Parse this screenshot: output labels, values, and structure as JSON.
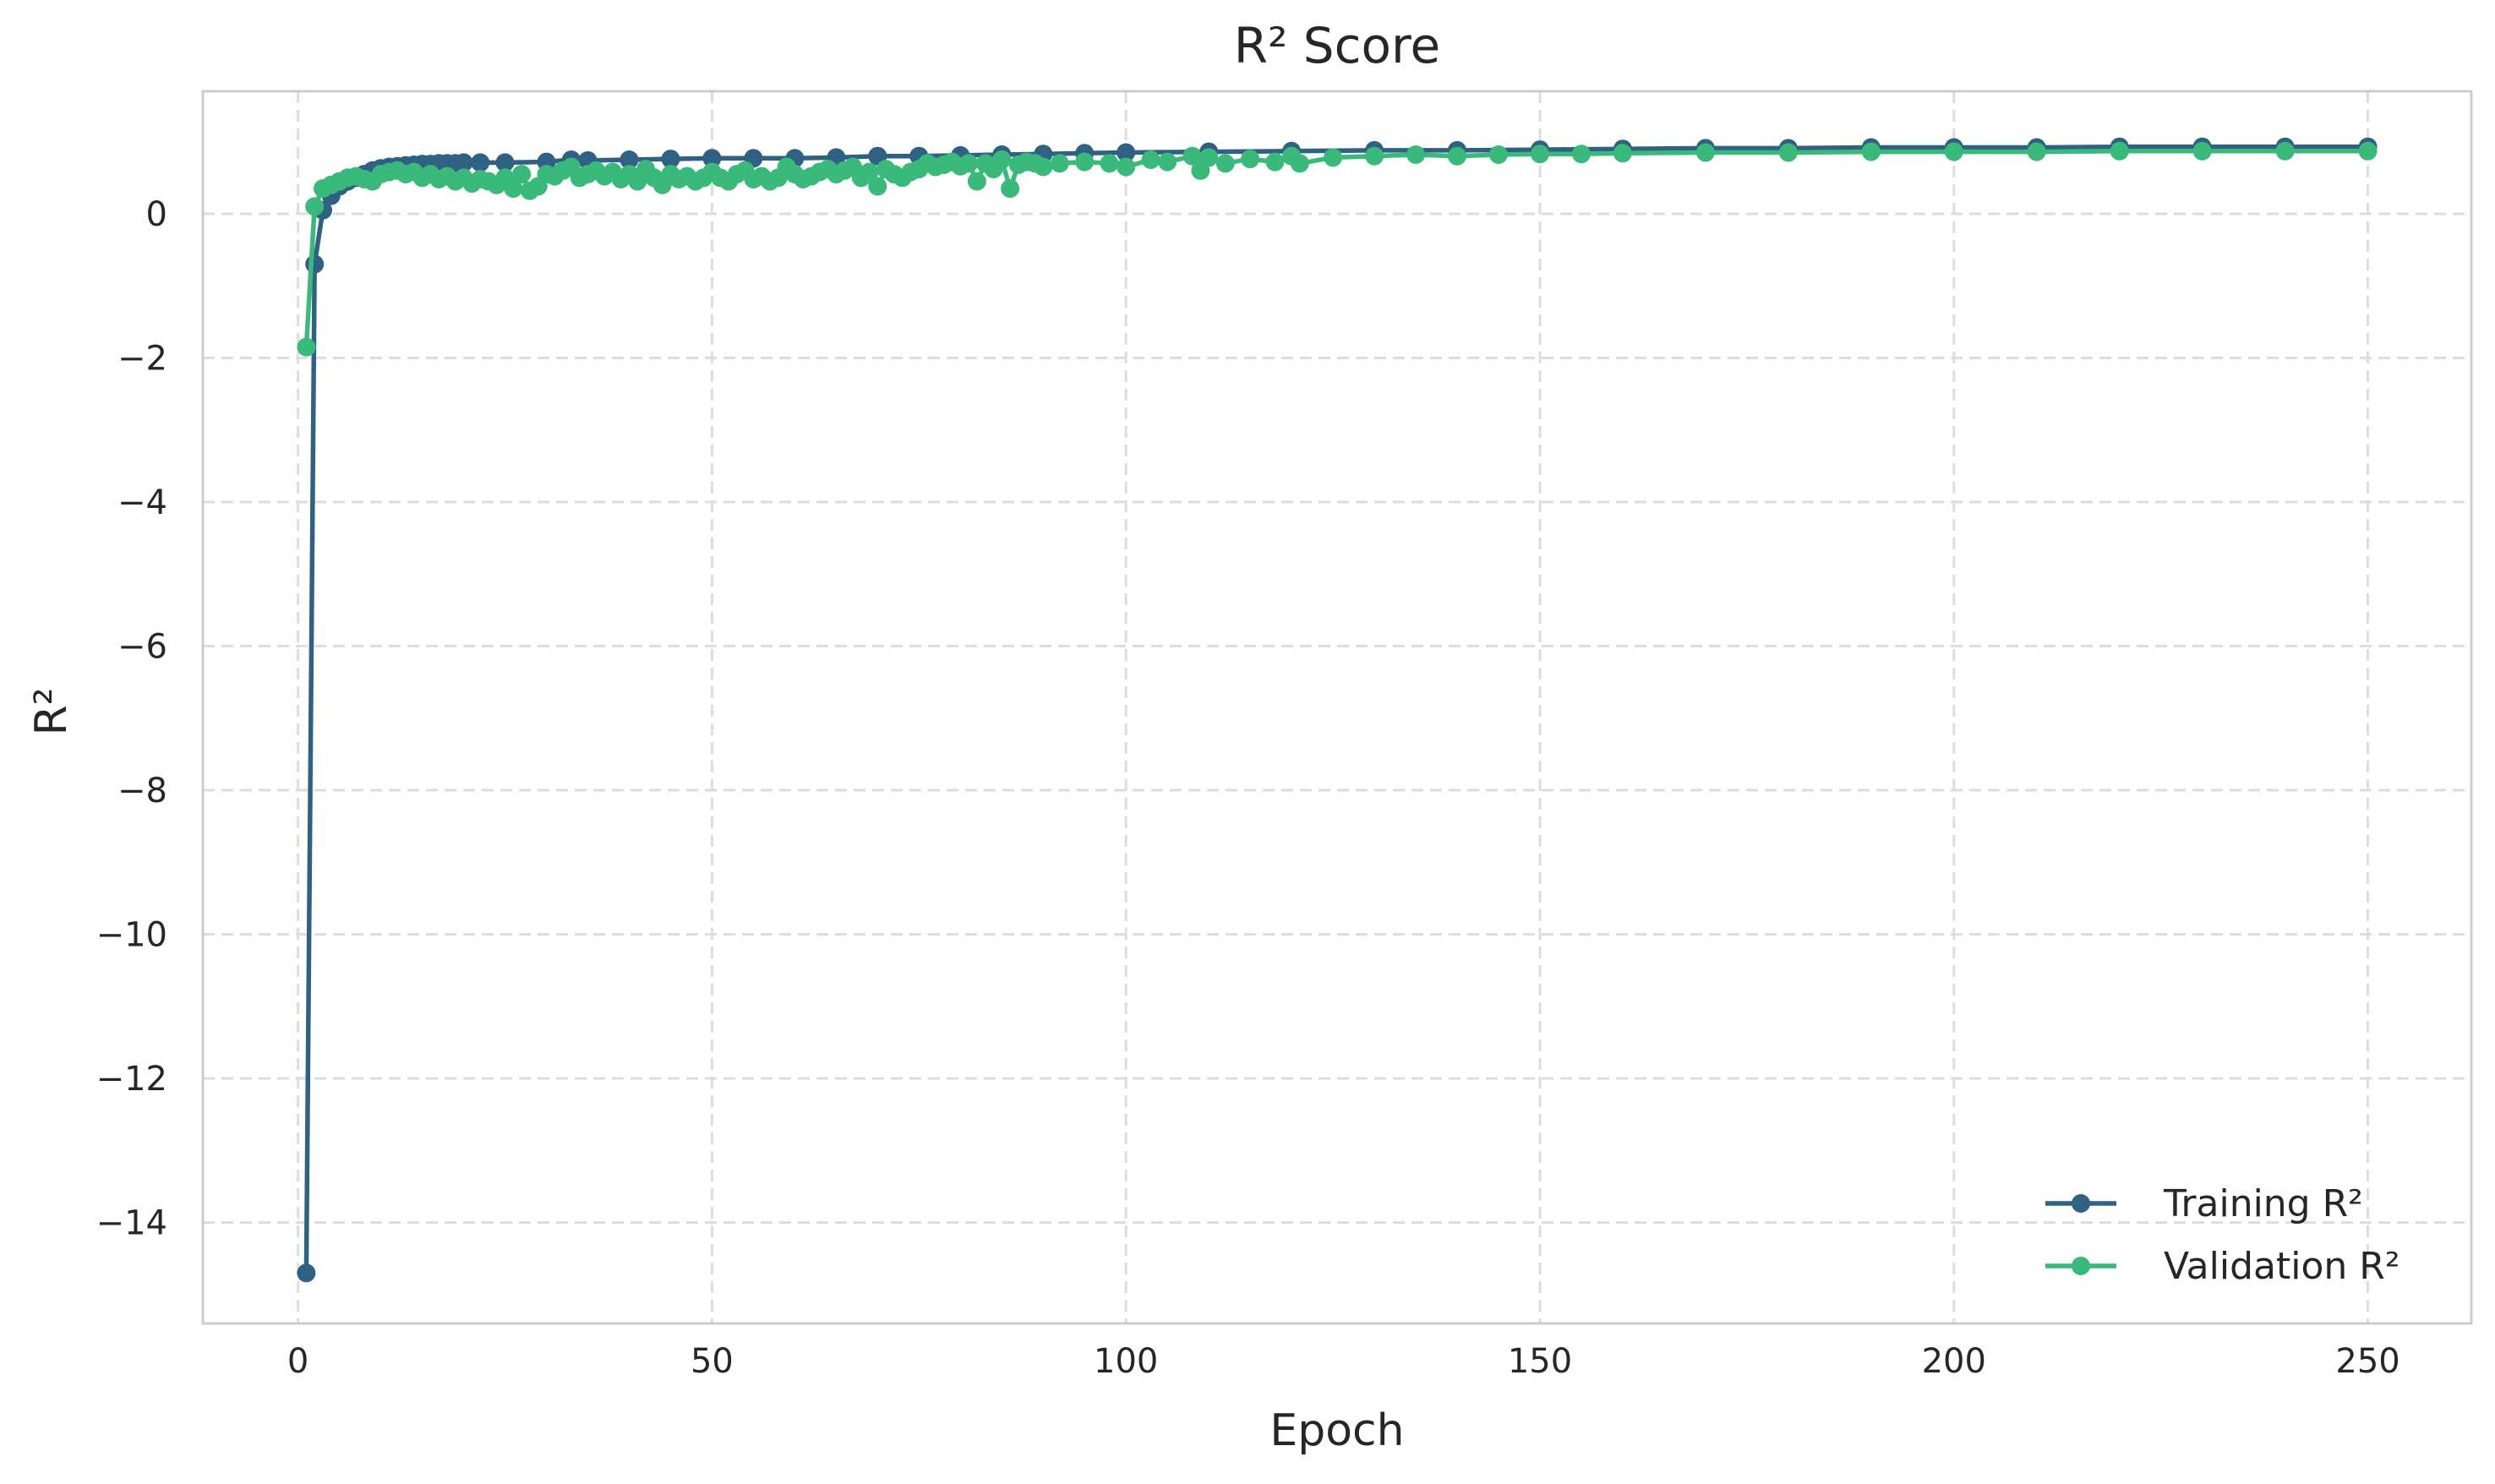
{
  "chart_data": {
    "type": "line",
    "title": "R² Score",
    "xlabel": "Epoch",
    "ylabel": "R²",
    "xlim": [
      -11.5,
      262.5
    ],
    "ylim": [
      -15.4,
      1.7
    ],
    "xticks": [
      0,
      50,
      100,
      150,
      200,
      250
    ],
    "xtick_labels": [
      "0",
      "50",
      "100",
      "150",
      "200",
      "250"
    ],
    "yticks": [
      0,
      -2,
      -4,
      -6,
      -8,
      -10,
      -12,
      -14
    ],
    "ytick_labels": [
      "0",
      "−2",
      "−4",
      "−6",
      "−8",
      "−10",
      "−12",
      "−14"
    ],
    "grid": true,
    "legend_position": "bottom-right",
    "series": [
      {
        "name": "Training R²",
        "color": "#2e6184",
        "points": [
          [
            1,
            -14.7
          ],
          [
            2,
            -0.7
          ],
          [
            3,
            0.05
          ],
          [
            4,
            0.25
          ],
          [
            5,
            0.38
          ],
          [
            6,
            0.45
          ],
          [
            7,
            0.5
          ],
          [
            8,
            0.55
          ],
          [
            9,
            0.6
          ],
          [
            10,
            0.63
          ],
          [
            11,
            0.65
          ],
          [
            12,
            0.66
          ],
          [
            13,
            0.67
          ],
          [
            14,
            0.68
          ],
          [
            15,
            0.69
          ],
          [
            16,
            0.69
          ],
          [
            17,
            0.7
          ],
          [
            18,
            0.7
          ],
          [
            19,
            0.7
          ],
          [
            20,
            0.71
          ],
          [
            22,
            0.71
          ],
          [
            25,
            0.71
          ],
          [
            30,
            0.72
          ],
          [
            33,
            0.75
          ],
          [
            35,
            0.74
          ],
          [
            40,
            0.75
          ],
          [
            45,
            0.76
          ],
          [
            50,
            0.77
          ],
          [
            55,
            0.77
          ],
          [
            60,
            0.77
          ],
          [
            65,
            0.78
          ],
          [
            70,
            0.8
          ],
          [
            75,
            0.8
          ],
          [
            80,
            0.81
          ],
          [
            85,
            0.82
          ],
          [
            90,
            0.83
          ],
          [
            95,
            0.84
          ],
          [
            100,
            0.85
          ],
          [
            110,
            0.86
          ],
          [
            120,
            0.87
          ],
          [
            130,
            0.88
          ],
          [
            140,
            0.88
          ],
          [
            150,
            0.89
          ],
          [
            160,
            0.9
          ],
          [
            170,
            0.91
          ],
          [
            180,
            0.91
          ],
          [
            190,
            0.92
          ],
          [
            200,
            0.92
          ],
          [
            210,
            0.92
          ],
          [
            220,
            0.93
          ],
          [
            230,
            0.93
          ],
          [
            240,
            0.93
          ],
          [
            250,
            0.93
          ]
        ]
      },
      {
        "name": "Validation R²",
        "color": "#3aba7a",
        "points": [
          [
            1,
            -1.85
          ],
          [
            2,
            0.1
          ],
          [
            3,
            0.35
          ],
          [
            4,
            0.4
          ],
          [
            5,
            0.45
          ],
          [
            6,
            0.5
          ],
          [
            7,
            0.52
          ],
          [
            8,
            0.48
          ],
          [
            9,
            0.45
          ],
          [
            10,
            0.55
          ],
          [
            11,
            0.58
          ],
          [
            12,
            0.6
          ],
          [
            13,
            0.55
          ],
          [
            14,
            0.58
          ],
          [
            15,
            0.5
          ],
          [
            16,
            0.55
          ],
          [
            17,
            0.48
          ],
          [
            18,
            0.52
          ],
          [
            19,
            0.45
          ],
          [
            20,
            0.5
          ],
          [
            21,
            0.42
          ],
          [
            22,
            0.48
          ],
          [
            23,
            0.45
          ],
          [
            24,
            0.4
          ],
          [
            25,
            0.5
          ],
          [
            26,
            0.35
          ],
          [
            27,
            0.55
          ],
          [
            28,
            0.32
          ],
          [
            29,
            0.38
          ],
          [
            30,
            0.55
          ],
          [
            31,
            0.52
          ],
          [
            32,
            0.6
          ],
          [
            33,
            0.65
          ],
          [
            34,
            0.5
          ],
          [
            35,
            0.55
          ],
          [
            36,
            0.6
          ],
          [
            37,
            0.52
          ],
          [
            38,
            0.58
          ],
          [
            39,
            0.48
          ],
          [
            40,
            0.55
          ],
          [
            41,
            0.45
          ],
          [
            42,
            0.62
          ],
          [
            43,
            0.5
          ],
          [
            44,
            0.4
          ],
          [
            45,
            0.55
          ],
          [
            46,
            0.48
          ],
          [
            47,
            0.52
          ],
          [
            48,
            0.45
          ],
          [
            49,
            0.5
          ],
          [
            50,
            0.58
          ],
          [
            51,
            0.5
          ],
          [
            52,
            0.45
          ],
          [
            53,
            0.55
          ],
          [
            54,
            0.6
          ],
          [
            55,
            0.48
          ],
          [
            56,
            0.52
          ],
          [
            57,
            0.45
          ],
          [
            58,
            0.5
          ],
          [
            59,
            0.65
          ],
          [
            60,
            0.55
          ],
          [
            61,
            0.48
          ],
          [
            62,
            0.52
          ],
          [
            63,
            0.58
          ],
          [
            64,
            0.62
          ],
          [
            65,
            0.55
          ],
          [
            66,
            0.6
          ],
          [
            67,
            0.65
          ],
          [
            68,
            0.5
          ],
          [
            69,
            0.58
          ],
          [
            70,
            0.38
          ],
          [
            71,
            0.62
          ],
          [
            72,
            0.55
          ],
          [
            73,
            0.5
          ],
          [
            74,
            0.58
          ],
          [
            75,
            0.62
          ],
          [
            76,
            0.7
          ],
          [
            77,
            0.65
          ],
          [
            78,
            0.68
          ],
          [
            79,
            0.72
          ],
          [
            80,
            0.66
          ],
          [
            81,
            0.7
          ],
          [
            82,
            0.45
          ],
          [
            83,
            0.7
          ],
          [
            84,
            0.62
          ],
          [
            85,
            0.75
          ],
          [
            86,
            0.35
          ],
          [
            87,
            0.68
          ],
          [
            88,
            0.72
          ],
          [
            89,
            0.7
          ],
          [
            90,
            0.65
          ],
          [
            92,
            0.7
          ],
          [
            95,
            0.72
          ],
          [
            98,
            0.7
          ],
          [
            100,
            0.65
          ],
          [
            103,
            0.75
          ],
          [
            105,
            0.72
          ],
          [
            108,
            0.8
          ],
          [
            109,
            0.6
          ],
          [
            110,
            0.78
          ],
          [
            112,
            0.7
          ],
          [
            115,
            0.76
          ],
          [
            118,
            0.72
          ],
          [
            120,
            0.8
          ],
          [
            121,
            0.7
          ],
          [
            125,
            0.78
          ],
          [
            130,
            0.8
          ],
          [
            135,
            0.82
          ],
          [
            140,
            0.8
          ],
          [
            145,
            0.82
          ],
          [
            150,
            0.83
          ],
          [
            155,
            0.83
          ],
          [
            160,
            0.84
          ],
          [
            170,
            0.85
          ],
          [
            180,
            0.85
          ],
          [
            190,
            0.86
          ],
          [
            200,
            0.86
          ],
          [
            210,
            0.86
          ],
          [
            220,
            0.87
          ],
          [
            230,
            0.87
          ],
          [
            240,
            0.87
          ],
          [
            250,
            0.87
          ]
        ]
      }
    ]
  }
}
